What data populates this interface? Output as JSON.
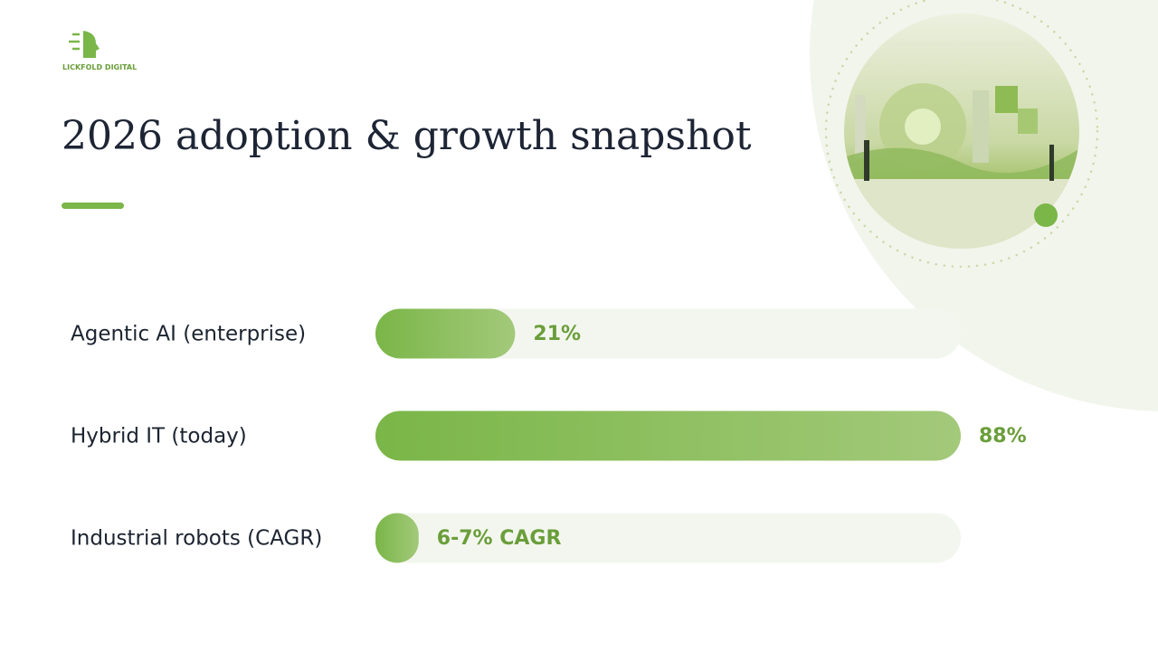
{
  "brand": "LICKFOLD DIGITAL",
  "chart_data": {
    "type": "bar",
    "orientation": "horizontal",
    "title": "2026 adoption & growth snapshot",
    "categories": [
      "Agentic AI (enterprise)",
      "Hybrid IT (today)",
      "Industrial robots (CAGR)"
    ],
    "values": [
      21,
      88,
      6.5
    ],
    "value_labels": [
      "21%",
      "88%",
      "6-7% CAGR"
    ],
    "color": "#7ab648",
    "xlim": [
      0,
      88
    ]
  }
}
